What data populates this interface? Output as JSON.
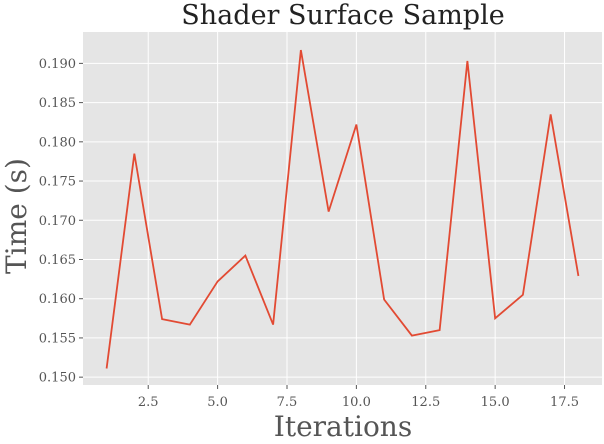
{
  "chart_data": {
    "type": "line",
    "title": "Shader Surface Sample",
    "xlabel": "Iterations",
    "ylabel": "Time (s)",
    "xlim": [
      0.15,
      18.85
    ],
    "ylim": [
      0.149,
      0.194
    ],
    "xticks": [
      2.5,
      5.0,
      7.5,
      10.0,
      12.5,
      15.0,
      17.5
    ],
    "xtick_labels": [
      "2.5",
      "5.0",
      "7.5",
      "10.0",
      "12.5",
      "15.0",
      "17.5"
    ],
    "yticks": [
      0.15,
      0.155,
      0.16,
      0.165,
      0.17,
      0.175,
      0.18,
      0.185,
      0.19
    ],
    "ytick_labels": [
      "0.150",
      "0.155",
      "0.160",
      "0.165",
      "0.170",
      "0.175",
      "0.180",
      "0.185",
      "0.190"
    ],
    "grid": true,
    "background": "#e5e5e5",
    "grid_color": "#ffffff",
    "line_color": "#e24a33",
    "series": [
      {
        "x": [
          1,
          2,
          3,
          4,
          5,
          6,
          7,
          8,
          9,
          10,
          11,
          12,
          13,
          14,
          15,
          16,
          17,
          18
        ],
        "values": [
          0.1511,
          0.1785,
          0.1574,
          0.1567,
          0.1622,
          0.1655,
          0.1567,
          0.1917,
          0.1711,
          0.1822,
          0.1599,
          0.1553,
          0.156,
          0.1903,
          0.1575,
          0.1605,
          0.1835,
          0.1629
        ]
      }
    ]
  }
}
